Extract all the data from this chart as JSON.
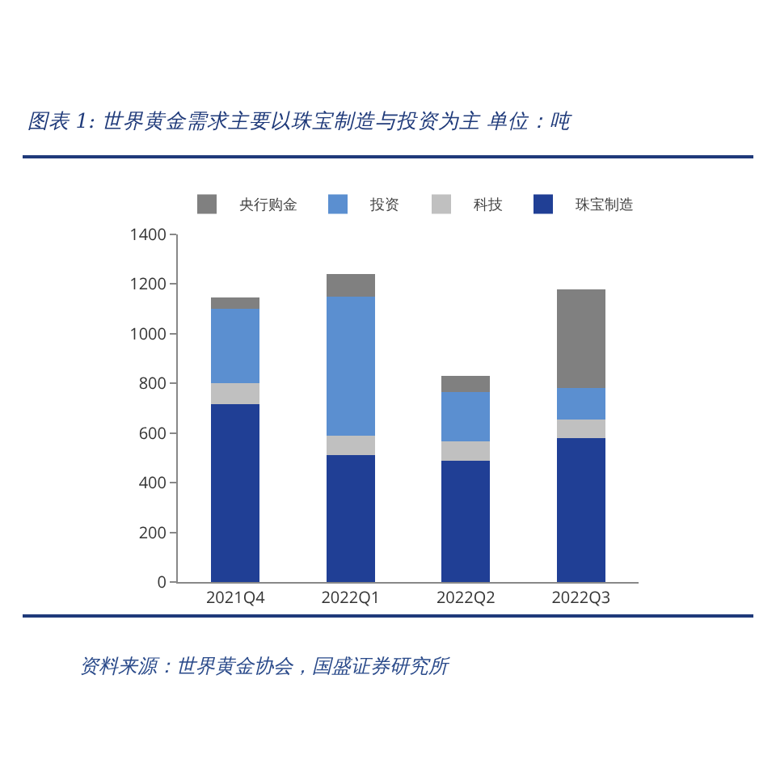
{
  "chart_data": {
    "type": "bar",
    "title": "图表 1: 世界黄金需求主要以珠宝制造与投资为主 单位：吨",
    "categories": [
      "2021Q4",
      "2022Q1",
      "2022Q2",
      "2022Q3"
    ],
    "stacked": true,
    "series": [
      {
        "name": "珠宝制造",
        "color": "#203f95",
        "values": [
          715,
          510,
          490,
          580
        ]
      },
      {
        "name": "科技",
        "color": "#c0c0c0",
        "values": [
          85,
          80,
          75,
          75
        ]
      },
      {
        "name": "投资",
        "color": "#5b8fd0",
        "values": [
          300,
          560,
          200,
          125
        ]
      },
      {
        "name": "央行购金",
        "color": "#808080",
        "values": [
          45,
          90,
          65,
          400
        ]
      }
    ],
    "ylim": [
      0,
      1400
    ],
    "yticks": [
      0,
      200,
      400,
      600,
      800,
      1000,
      1200,
      1400
    ],
    "grid": false,
    "legend": "top",
    "annotations": [
      "资料来源：世界黄金协会，国盛证券研究所"
    ]
  }
}
